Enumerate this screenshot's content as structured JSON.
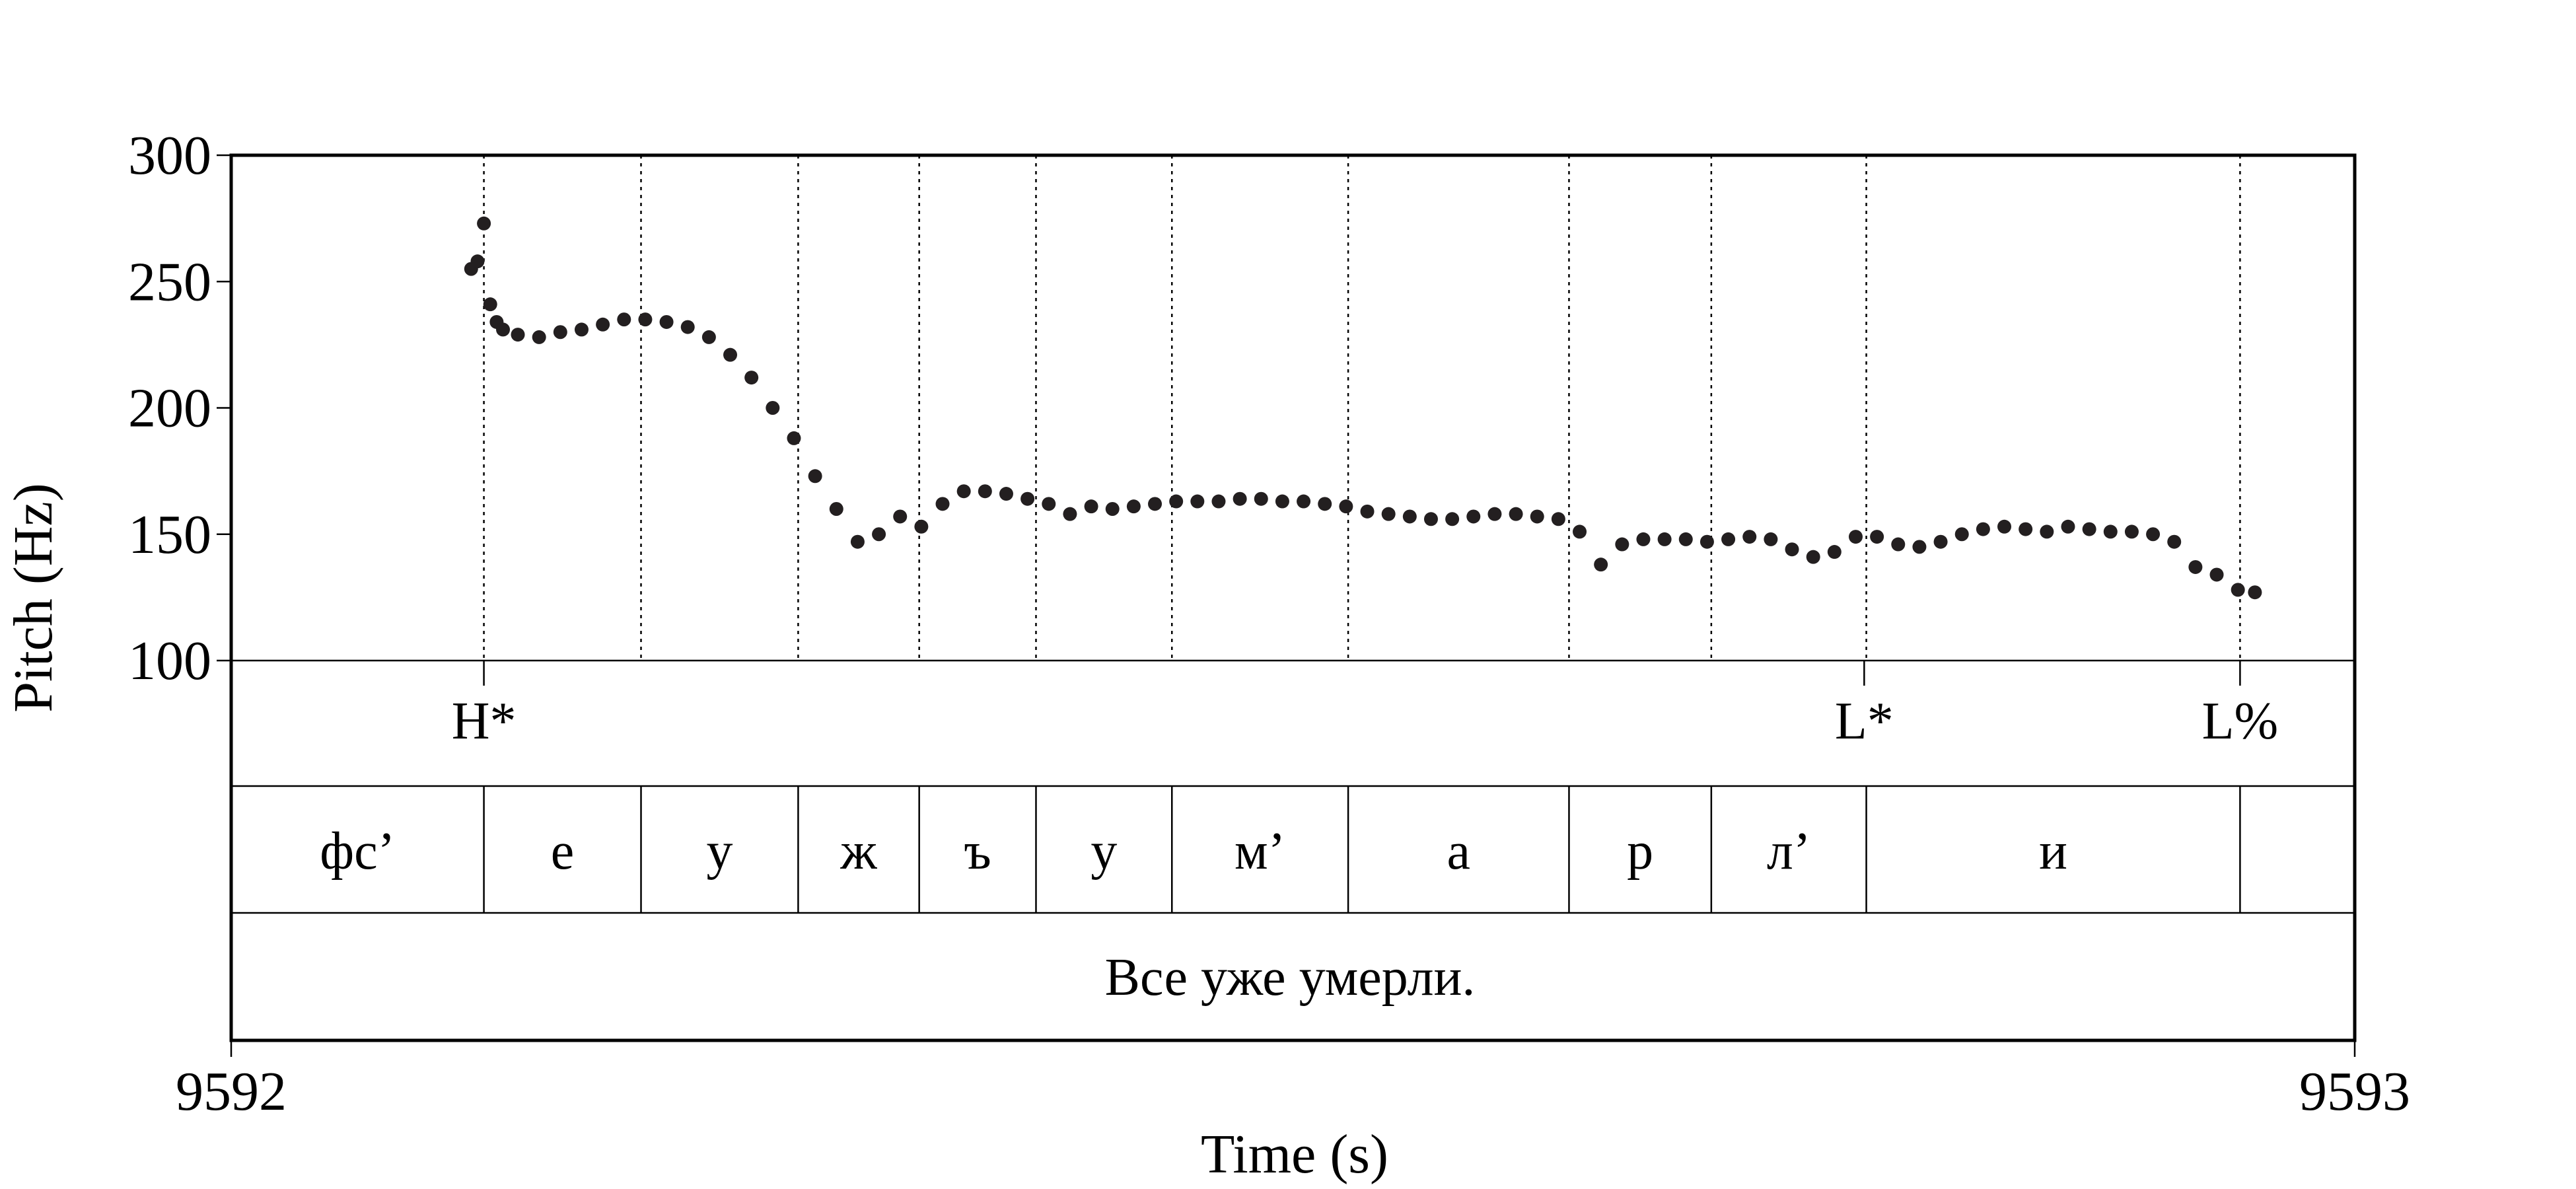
{
  "chart_data": {
    "type": "scatter",
    "xlabel": "Time (s)",
    "ylabel": "Pitch (Hz)",
    "xlim": [
      9592,
      9593
    ],
    "ylim": [
      100,
      300
    ],
    "x_ticks": [
      "9592",
      "9593"
    ],
    "y_ticks": [
      "100",
      "150",
      "200",
      "250",
      "300"
    ],
    "grid": false,
    "series": [
      {
        "points_x": [
          9592.113,
          9592.116,
          9592.119,
          9592.122,
          9592.125,
          9592.128,
          9592.135,
          9592.145,
          9592.155,
          9592.165,
          9592.175,
          9592.185,
          9592.195,
          9592.205,
          9592.215,
          9592.225,
          9592.235,
          9592.245,
          9592.255,
          9592.265,
          9592.275,
          9592.285,
          9592.295,
          9592.305,
          9592.315,
          9592.325,
          9592.335,
          9592.345,
          9592.355,
          9592.365,
          9592.375,
          9592.385,
          9592.395,
          9592.405,
          9592.415,
          9592.425,
          9592.435,
          9592.445,
          9592.455,
          9592.465,
          9592.475,
          9592.485,
          9592.495,
          9592.505,
          9592.515,
          9592.525,
          9592.535,
          9592.545,
          9592.555,
          9592.565,
          9592.575,
          9592.585,
          9592.595,
          9592.605,
          9592.615,
          9592.625,
          9592.635,
          9592.645,
          9592.655,
          9592.665,
          9592.675,
          9592.685,
          9592.695,
          9592.705,
          9592.715,
          9592.725,
          9592.735,
          9592.745,
          9592.755,
          9592.765,
          9592.775,
          9592.785,
          9592.795,
          9592.805,
          9592.815,
          9592.825,
          9592.835,
          9592.845,
          9592.855,
          9592.865,
          9592.875,
          9592.885,
          9592.895,
          9592.905,
          9592.915,
          9592.925,
          9592.935,
          9592.945,
          9592.953
        ],
        "points_y": [
          255,
          258,
          273,
          241,
          234,
          231,
          229,
          228,
          230,
          231,
          233,
          235,
          235,
          234,
          232,
          228,
          221,
          212,
          200,
          188,
          173,
          160,
          147,
          150,
          157,
          153,
          162,
          167,
          167,
          166,
          164,
          162,
          158,
          161,
          160,
          161,
          162,
          163,
          163,
          163,
          164,
          164,
          163,
          163,
          162,
          161,
          159,
          158,
          157,
          156,
          156,
          157,
          158,
          158,
          157,
          156,
          151,
          138,
          146,
          148,
          148,
          148,
          147,
          148,
          149,
          148,
          144,
          141,
          143,
          149,
          149,
          146,
          145,
          147,
          150,
          152,
          153,
          152,
          151,
          153,
          152,
          151,
          151,
          150,
          147,
          137,
          134,
          128,
          127
        ]
      }
    ],
    "tiers": {
      "tones": [
        {
          "time": 9592.119,
          "label": "H*"
        },
        {
          "time": 9592.769,
          "label": "L*"
        },
        {
          "time": 9592.946,
          "label": "L%"
        }
      ],
      "segments": [
        "фс’",
        "е",
        "у",
        "ж",
        "ъ",
        "у",
        "м’",
        "а",
        "р",
        "л’",
        "и",
        ""
      ],
      "segment_boundaries": [
        9592.119,
        9592.193,
        9592.267,
        9592.324,
        9592.379,
        9592.443,
        9592.526,
        9592.63,
        9592.697,
        9592.77,
        9592.946
      ],
      "sentence": "Все уже умерли."
    }
  }
}
